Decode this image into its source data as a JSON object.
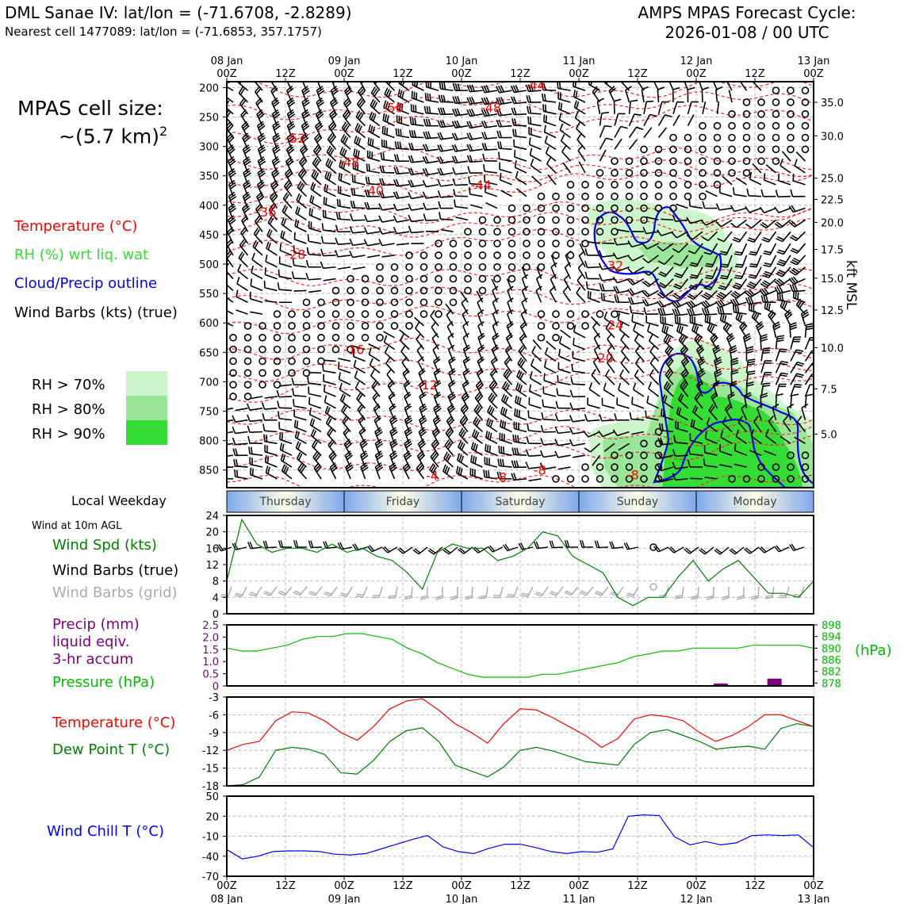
{
  "header": {
    "site_title": "DML Sanae IV: lat/lon = (-71.6708, -2.8289)",
    "nearest_cell": "Nearest cell 1477089: lat/lon = (-71.6853, 357.1757)",
    "cycle_title": "AMPS MPAS Forecast Cycle:",
    "cycle_date": "2026-01-08 / 00 UTC"
  },
  "cell_size": {
    "line1": "MPAS cell size:",
    "line2": "~(5.7 km)",
    "sup": "2"
  },
  "legend": {
    "temperature": "Temperature (°C)",
    "rh": "RH (%) wrt liq. wat",
    "cloud": "Cloud/Precip outline",
    "wind": "Wind Barbs (kts) (true)",
    "rh70": "RH > 70%",
    "rh80": "RH > 80%",
    "rh90": "RH > 90%",
    "colors": {
      "rh70": "#ccf5cc",
      "rh80": "#99e699",
      "rh90": "#33dd33",
      "temp": "#ff0000",
      "cloud": "#0000ee"
    }
  },
  "time_axis": {
    "top_ticks": [
      {
        "l1": "08 Jan",
        "l2": "00Z"
      },
      {
        "l1": "",
        "l2": "12Z"
      },
      {
        "l1": "09 Jan",
        "l2": "00Z"
      },
      {
        "l1": "",
        "l2": "12Z"
      },
      {
        "l1": "10 Jan",
        "l2": "00Z"
      },
      {
        "l1": "",
        "l2": "12Z"
      },
      {
        "l1": "11 Jan",
        "l2": "00Z"
      },
      {
        "l1": "",
        "l2": "12Z"
      },
      {
        "l1": "12 Jan",
        "l2": "00Z"
      },
      {
        "l1": "",
        "l2": "12Z"
      },
      {
        "l1": "13 Jan",
        "l2": "00Z"
      }
    ],
    "bottom_ticks": [
      {
        "l1": "00Z",
        "l2": "08 Jan"
      },
      {
        "l1": "12Z",
        "l2": ""
      },
      {
        "l1": "00Z",
        "l2": "09 Jan"
      },
      {
        "l1": "12Z",
        "l2": ""
      },
      {
        "l1": "00Z",
        "l2": "10 Jan"
      },
      {
        "l1": "12Z",
        "l2": ""
      },
      {
        "l1": "00Z",
        "l2": "11 Jan"
      },
      {
        "l1": "12Z",
        "l2": ""
      },
      {
        "l1": "00Z",
        "l2": "12 Jan"
      },
      {
        "l1": "12Z",
        "l2": ""
      },
      {
        "l1": "00Z",
        "l2": "13 Jan"
      }
    ]
  },
  "weekday": {
    "label": "Local Weekday",
    "days": [
      "Thursday",
      "Friday",
      "Saturday",
      "Sunday",
      "Monday"
    ]
  },
  "wind_panel": {
    "header": "Wind at 10m AGL",
    "spd_label": "Wind Spd (kts)",
    "true_label": "Wind Barbs (true)",
    "grid_label": "Wind Barbs (grid)"
  },
  "precip_panel": {
    "l1": "Precip (mm)",
    "l2": "liquid eqiv.",
    "l3": "3-hr accum",
    "pressure_label": "Pressure (hPa)",
    "hpa_unit": "(hPa)"
  },
  "temp_panel": {
    "temp_label": "Temperature (°C)",
    "dew_label": "Dew Point T (°C)"
  },
  "chill_panel": {
    "label": "Wind Chill T (°C)"
  },
  "kft_label": "kft MSL",
  "chart_data": [
    {
      "type": "contour",
      "title": "Time-height cross section",
      "x_range_hours": [
        0,
        120
      ],
      "y_pressure_ticks": [
        200,
        250,
        300,
        350,
        400,
        450,
        500,
        550,
        600,
        650,
        700,
        750,
        800,
        850
      ],
      "y_pressure_range": [
        190,
        880
      ],
      "kft_ticks": [
        {
          "p": 225,
          "v": "35.0"
        },
        {
          "p": 282,
          "v": "30.0"
        },
        {
          "p": 354,
          "v": "25.0"
        },
        {
          "p": 390,
          "v": "22.5"
        },
        {
          "p": 429,
          "v": "20.0"
        },
        {
          "p": 475,
          "v": "17.5"
        },
        {
          "p": 524,
          "v": "15.0"
        },
        {
          "p": 578,
          "v": "12.5"
        },
        {
          "p": 642,
          "v": "10.0"
        },
        {
          "p": 712,
          "v": "7.5"
        },
        {
          "p": 789,
          "v": "5.0"
        }
      ],
      "temp_labels": [
        {
          "h": 63,
          "p": 204,
          "t": "-44"
        },
        {
          "h": 54,
          "p": 242,
          "t": "-48"
        },
        {
          "h": 34,
          "p": 242,
          "t": "-56"
        },
        {
          "h": 14,
          "p": 294,
          "t": "-52"
        },
        {
          "h": 25,
          "p": 334,
          "t": "-48"
        },
        {
          "h": 30,
          "p": 383,
          "t": "-40"
        },
        {
          "h": 52,
          "p": 373,
          "t": "-44"
        },
        {
          "h": 8,
          "p": 419,
          "t": "-36"
        },
        {
          "h": 14,
          "p": 491,
          "t": "-28"
        },
        {
          "h": 79,
          "p": 510,
          "t": "-32"
        },
        {
          "h": 79,
          "p": 611,
          "t": "-24"
        },
        {
          "h": 26,
          "p": 653,
          "t": "-16"
        },
        {
          "h": 77,
          "p": 667,
          "t": "-20"
        },
        {
          "h": 41,
          "p": 713,
          "t": "-12"
        },
        {
          "h": 42,
          "p": 867,
          "t": "-4"
        },
        {
          "h": 56,
          "p": 870,
          "t": "-8"
        },
        {
          "h": 64,
          "p": 858,
          "t": "-8"
        },
        {
          "h": 83,
          "p": 866,
          "t": "-8"
        }
      ]
    },
    {
      "type": "line",
      "title": "Wind Spd (kts)",
      "x_step_hours": 3,
      "ylim": [
        0,
        24
      ],
      "yticks": [
        0,
        4,
        8,
        12,
        16,
        20,
        24
      ],
      "series": [
        {
          "name": "Wind Spd (kts)",
          "color": "#008000",
          "values": [
            8,
            23,
            17,
            15,
            16,
            16,
            15,
            17,
            15,
            16,
            14,
            13,
            10,
            6,
            15,
            17,
            16,
            16,
            13,
            14,
            16,
            20,
            19,
            14,
            12,
            10,
            4,
            2,
            4,
            4,
            9,
            13,
            8,
            11,
            13,
            9,
            5,
            5,
            4,
            8
          ]
        }
      ]
    },
    {
      "type": "line",
      "title": "Pressure (hPa)",
      "ylim_precip": [
        0,
        2.5
      ],
      "precip_ticks": [
        0,
        0.5,
        1.0,
        1.5,
        2.0,
        2.5
      ],
      "ylim_pressure": [
        877,
        898
      ],
      "pressure_ticks": [
        878,
        882,
        886,
        890,
        894,
        898
      ],
      "pressure": [
        890,
        889,
        889,
        890,
        891,
        893,
        894,
        894,
        895,
        895,
        894,
        893,
        890,
        888,
        885,
        883,
        881,
        880,
        880,
        880,
        880,
        881,
        881,
        882,
        883,
        884,
        885,
        887,
        888,
        889,
        889,
        890,
        890,
        890,
        890,
        891,
        891,
        891,
        891,
        890
      ],
      "precip_bars": [
        {
          "h": 101,
          "v": 0.1
        },
        {
          "h": 112,
          "v": 0.3
        }
      ]
    },
    {
      "type": "line",
      "title": "Temperature / Dew Point",
      "ylim": [
        -18,
        -3
      ],
      "yticks": [
        -18,
        -15,
        -12,
        -9,
        -6,
        -3
      ],
      "series": [
        {
          "name": "Temperature (°C)",
          "color": "#ff0000",
          "values": [
            -12,
            -11,
            -10.5,
            -7,
            -5.5,
            -5.7,
            -7,
            -9,
            -10.3,
            -8,
            -5,
            -3.7,
            -3.3,
            -5.2,
            -7.5,
            -9,
            -10.8,
            -7.5,
            -5,
            -5.2,
            -6.5,
            -8,
            -9.5,
            -11.5,
            -10,
            -6.7,
            -6,
            -6.3,
            -7,
            -9,
            -10.5,
            -9.5,
            -8,
            -6,
            -6,
            -7,
            -8
          ]
        },
        {
          "name": "Dew Point T (°C)",
          "color": "#008000",
          "values": [
            -18,
            -17.8,
            -16.5,
            -12,
            -11.5,
            -11.8,
            -12.7,
            -15.8,
            -16,
            -13.7,
            -10.5,
            -8.7,
            -8.2,
            -10.5,
            -14.5,
            -15.5,
            -16.5,
            -14.8,
            -12,
            -11.5,
            -12.1,
            -13,
            -13.9,
            -14.2,
            -14.5,
            -11,
            -9,
            -8.5,
            -9.5,
            -10.5,
            -11.8,
            -11.5,
            -11.3,
            -11.8,
            -8.3,
            -7.5,
            -8
          ]
        }
      ]
    },
    {
      "type": "line",
      "title": "Wind Chill T (°C)",
      "ylim": [
        -70,
        50
      ],
      "yticks": [
        -70,
        -40,
        -10,
        20,
        50
      ],
      "series": [
        {
          "name": "Wind Chill T (°C)",
          "color": "#0000ff",
          "values": [
            -30,
            -44,
            -40,
            -33,
            -32,
            -32,
            -33,
            -37,
            -38,
            -36,
            -29,
            -22,
            -15,
            -9,
            -26,
            -33,
            -36,
            -28,
            -22,
            -22,
            -27,
            -33,
            -36,
            -33,
            -34,
            -29,
            20,
            22,
            21,
            -11,
            -23,
            -18,
            -23,
            -20,
            -9,
            -8,
            -9,
            -8,
            -27
          ]
        }
      ]
    }
  ]
}
